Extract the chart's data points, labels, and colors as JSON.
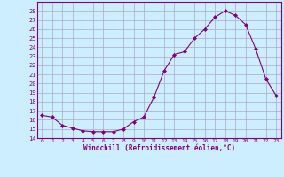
{
  "hours": [
    0,
    1,
    2,
    3,
    4,
    5,
    6,
    7,
    8,
    9,
    10,
    11,
    12,
    13,
    14,
    15,
    16,
    17,
    18,
    19,
    20,
    21,
    22,
    23
  ],
  "temps": [
    16.5,
    16.3,
    15.4,
    15.1,
    14.8,
    14.7,
    14.7,
    14.7,
    15.0,
    15.8,
    16.3,
    18.5,
    21.4,
    23.2,
    23.5,
    25.0,
    26.0,
    27.3,
    28.0,
    27.5,
    26.5,
    23.8,
    20.5,
    18.7
  ],
  "line_color": "#800080",
  "marker": "D",
  "marker_size": 2,
  "bg_color": "#cceeff",
  "grid_color": "#aaaacc",
  "ylim": [
    14,
    29
  ],
  "yticks": [
    14,
    15,
    16,
    17,
    18,
    19,
    20,
    21,
    22,
    23,
    24,
    25,
    26,
    27,
    28
  ],
  "xlabel": "Windchill (Refroidissement éolien,°C)",
  "xlabel_color": "#800080",
  "tick_color": "#800080",
  "spine_color": "#800080"
}
